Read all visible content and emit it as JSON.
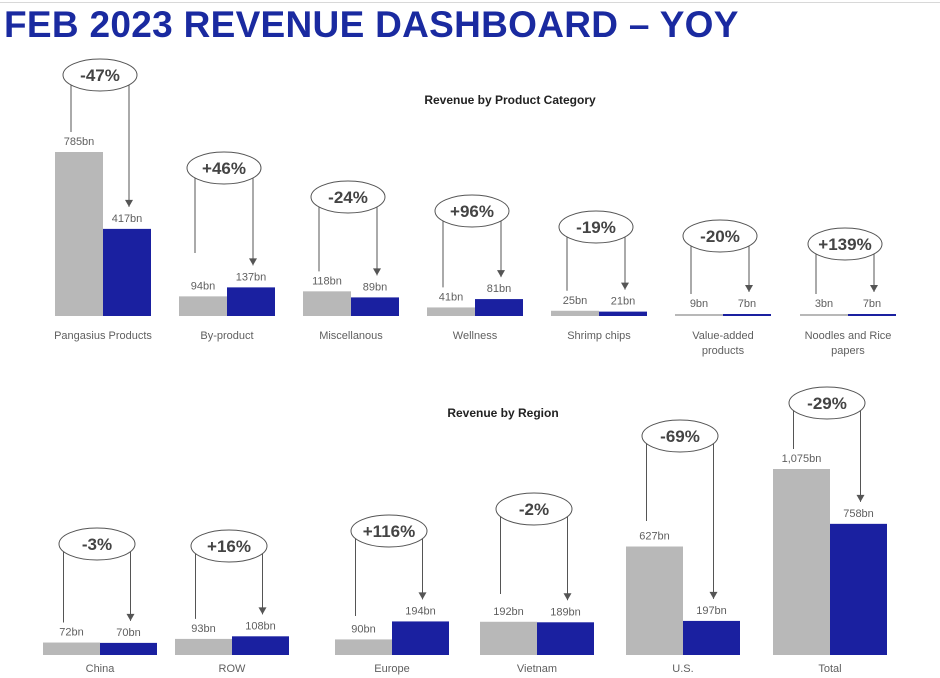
{
  "dashboard": {
    "title": "FEB 2023 REVENUE DASHBOARD – YOY"
  },
  "colors": {
    "previous": "#b8b8b8",
    "current": "#1a20a0",
    "title": "#1a2aa0",
    "label": "#5f5f5f",
    "arrow": "#555555"
  },
  "chart_data": [
    {
      "type": "bar",
      "title": "Revenue by Product Category",
      "xlabel": "",
      "ylabel": "",
      "grid": false,
      "legend": "none",
      "ylim": [
        0,
        785
      ],
      "categories": [
        "Pangasius Products",
        "By-product",
        "Miscellanous",
        "Wellness",
        "Shrimp chips",
        "Value-added products",
        "Noodles and Rice papers"
      ],
      "series": [
        {
          "values": [
            785,
            94,
            118,
            41,
            25,
            9,
            3
          ],
          "labels": [
            "785bn",
            "94bn",
            "118bn",
            "41bn",
            "25bn",
            "9bn",
            "3bn"
          ]
        },
        {
          "values": [
            417,
            137,
            89,
            81,
            21,
            7,
            7
          ],
          "labels": [
            "417bn",
            "137bn",
            "89bn",
            "81bn",
            "21bn",
            "7bn",
            "7bn"
          ]
        }
      ],
      "changes": [
        "-47%",
        "+46%",
        "-24%",
        "+96%",
        "-19%",
        "-20%",
        "+139%"
      ]
    },
    {
      "type": "bar",
      "title": "Revenue by Region",
      "xlabel": "",
      "ylabel": "",
      "grid": false,
      "legend": "none",
      "ylim": [
        0,
        1075
      ],
      "categories": [
        "China",
        "ROW",
        "Europe",
        "Vietnam",
        "U.S.",
        "Total"
      ],
      "series": [
        {
          "values": [
            72,
            93,
            90,
            192,
            627,
            1075
          ],
          "labels": [
            "72bn",
            "93bn",
            "90bn",
            "192bn",
            "627bn",
            "1,075bn"
          ]
        },
        {
          "values": [
            70,
            108,
            194,
            189,
            197,
            758
          ],
          "labels": [
            "70bn",
            "108bn",
            "194bn",
            "189bn",
            "197bn",
            "758bn"
          ]
        }
      ],
      "changes": [
        "-3%",
        "+16%",
        "+116%",
        "-2%",
        "-69%",
        "-29%"
      ]
    }
  ]
}
